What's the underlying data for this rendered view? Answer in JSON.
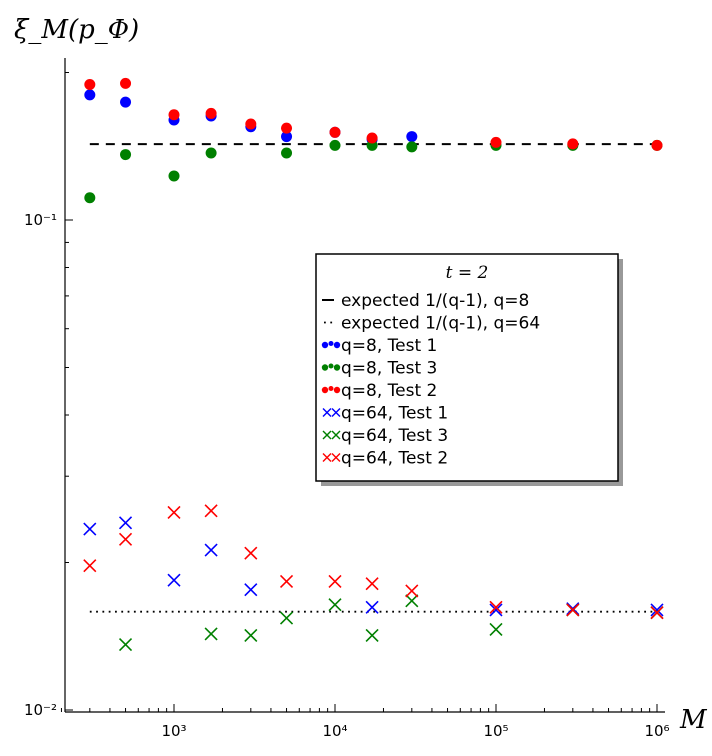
{
  "chart_data": {
    "type": "scatter",
    "title": "",
    "ylabel": "ξ_M(p_Φ)",
    "xlabel": "M",
    "x_scale": "log",
    "y_scale": "log",
    "xlim": [
      200,
      1000000
    ],
    "ylim": [
      0.01,
      0.3
    ],
    "x_ticks": [
      {
        "value": 1000,
        "label": "10³"
      },
      {
        "value": 10000,
        "label": "10⁴"
      },
      {
        "value": 100000,
        "label": "10⁵"
      },
      {
        "value": 1000000,
        "label": "10⁶"
      }
    ],
    "y_ticks": [
      {
        "value": 0.1,
        "label": "10⁻¹"
      },
      {
        "value": 0.01,
        "label": "10⁻²"
      }
    ],
    "grid": false,
    "legend": {
      "placement": "center-right",
      "title": "t = 2",
      "entries": [
        {
          "label": "expected 1/(q-1), q=8",
          "marker": "dash",
          "color": "#000000"
        },
        {
          "label": "expected 1/(q-1), q=64",
          "marker": "dot",
          "color": "#000000"
        },
        {
          "label": "q=8, Test 1",
          "marker": "circle",
          "color": "#0000ff"
        },
        {
          "label": "q=8, Test 3",
          "marker": "circle",
          "color": "#008000"
        },
        {
          "label": "q=8, Test 2",
          "marker": "circle",
          "color": "#ff0000"
        },
        {
          "label": "q=64, Test 1",
          "marker": "x",
          "color": "#0000ff"
        },
        {
          "label": "q=64, Test 3",
          "marker": "x",
          "color": "#008000"
        },
        {
          "label": "q=64, Test 2",
          "marker": "x",
          "color": "#ff0000"
        }
      ]
    },
    "reference_lines": [
      {
        "name": "expected 1/(q-1), q=8",
        "y": 0.142857,
        "style": "dashed",
        "color": "#000000"
      },
      {
        "name": "expected 1/(q-1), q=64",
        "y": 0.015873,
        "style": "dotted",
        "color": "#000000"
      }
    ],
    "x": [
      300,
      500,
      1000,
      1700,
      3000,
      5000,
      10000,
      17000,
      30000,
      100000,
      300000,
      1000000
    ],
    "series": [
      {
        "name": "q=8, Test 1",
        "marker": "circle",
        "color": "#0000ff",
        "values": [
          0.18,
          0.174,
          0.16,
          0.163,
          0.155,
          0.148,
          0.151,
          0.146,
          0.148,
          null,
          null,
          null
        ]
      },
      {
        "name": "q=8, Test 3",
        "marker": "circle",
        "color": "#008000",
        "values": [
          0.111,
          0.136,
          0.123,
          0.137,
          null,
          0.137,
          0.142,
          0.142,
          0.141,
          0.142,
          0.142,
          0.142
        ]
      },
      {
        "name": "q=8, Test 2",
        "marker": "circle",
        "color": "#ff0000",
        "values": [
          0.189,
          0.19,
          0.164,
          0.165,
          0.157,
          0.154,
          0.151,
          0.147,
          null,
          0.144,
          0.143,
          0.142
        ]
      },
      {
        "name": "q=64, Test 1",
        "marker": "x",
        "color": "#0000ff",
        "values": [
          0.0234,
          0.0241,
          0.0184,
          0.0212,
          0.0176,
          null,
          null,
          0.0162,
          null,
          0.016,
          0.0161,
          0.016
        ]
      },
      {
        "name": "q=64, Test 3",
        "marker": "x",
        "color": "#008000",
        "values": [
          null,
          0.0136,
          null,
          0.0143,
          0.0142,
          0.0154,
          0.0164,
          0.0142,
          0.0167,
          0.0146,
          0.016,
          0.0158
        ]
      },
      {
        "name": "q=64, Test 2",
        "marker": "x",
        "color": "#ff0000",
        "values": [
          0.0197,
          0.0223,
          0.0253,
          0.0255,
          0.0209,
          0.0183,
          0.0183,
          0.0181,
          0.0175,
          0.0162,
          0.016,
          0.0158
        ]
      }
    ]
  }
}
